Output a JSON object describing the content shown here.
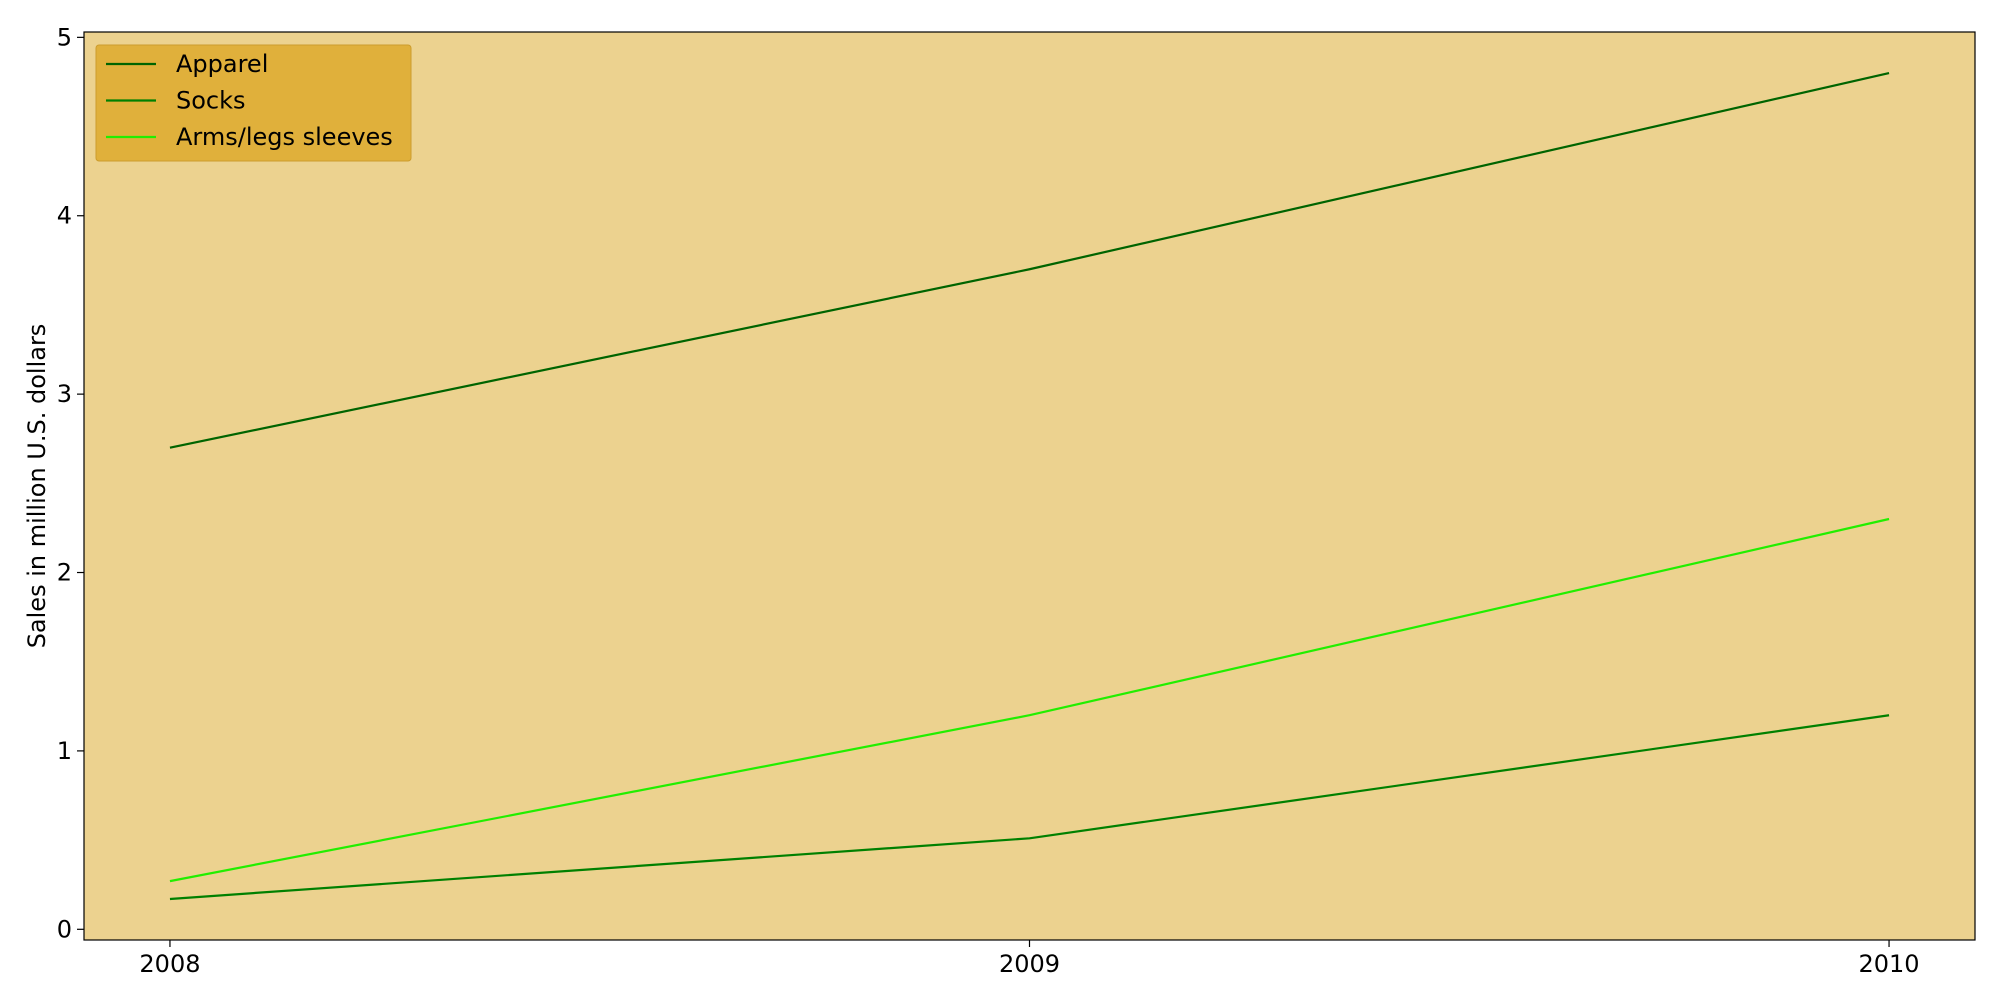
{
  "chart_data": {
    "type": "line",
    "title": "",
    "xlabel": "",
    "ylabel": "Sales in million U.S. dollars",
    "x": [
      "2008",
      "2009",
      "2010"
    ],
    "xlim": [
      2007.9,
      2010.1
    ],
    "ylim": [
      -0.06,
      5.03
    ],
    "yticks": [
      0,
      1,
      2,
      3,
      4,
      5
    ],
    "grid": false,
    "legend_position": "top-left",
    "series": [
      {
        "name": "Apparel",
        "color": "#006400",
        "values": [
          2.7,
          3.7,
          4.8
        ]
      },
      {
        "name": "Socks",
        "color": "#008000",
        "values": [
          0.17,
          0.51,
          1.2
        ]
      },
      {
        "name": "Arms/legs sleeves",
        "color": "#22ee00",
        "values": [
          0.27,
          1.2,
          2.3
        ]
      }
    ],
    "colors": {
      "plot_background": "#ecd28f",
      "legend_background": "#dfae37",
      "axis": "#000000"
    }
  }
}
